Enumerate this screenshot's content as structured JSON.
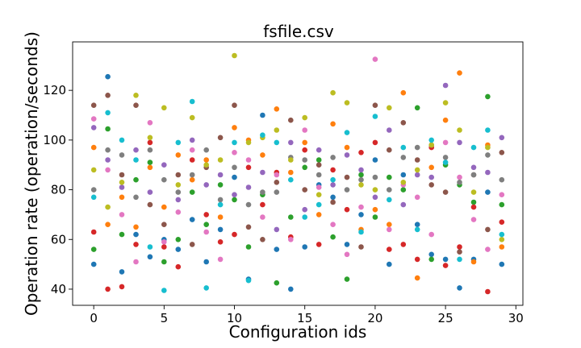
{
  "chart_data": {
    "type": "scatter",
    "title": "fsfile.csv",
    "xlabel": "Configuration ids",
    "ylabel": "Operation rate (operation/seconds)",
    "xlim": [
      -1.5,
      30.5
    ],
    "ylim": [
      33.5,
      139.5
    ],
    "xticks": [
      0,
      5,
      10,
      15,
      20,
      25,
      30
    ],
    "yticks": [
      40,
      60,
      80,
      100,
      120
    ],
    "grid": false,
    "legend": "none",
    "colors": [
      "#1f77b4",
      "#ff7f0e",
      "#2ca02c",
      "#d62728",
      "#9467bd",
      "#8c564b",
      "#e377c2",
      "#7f7f7f",
      "#bcbd22",
      "#17becf"
    ],
    "series": [
      {
        "color": "#1f77b4",
        "x": [
          0,
          1,
          2,
          3,
          4,
          5,
          6,
          7,
          8,
          9,
          10,
          11,
          12,
          13,
          14,
          15,
          16,
          17,
          18,
          19,
          20,
          21,
          22,
          23,
          24,
          25,
          26,
          27,
          28,
          29
        ],
        "y": [
          50,
          125.5,
          47,
          62,
          53,
          60,
          56,
          68,
          51,
          64,
          85,
          44,
          110,
          56,
          40,
          57,
          82,
          77,
          58,
          70,
          92,
          50,
          86,
          66,
          54,
          52,
          40.5,
          52,
          79,
          50
        ]
      },
      {
        "color": "#ff7f0e",
        "x": [
          0,
          1,
          2,
          3,
          4,
          5,
          6,
          7,
          8,
          9,
          10,
          11,
          12,
          13,
          14,
          15,
          16,
          17,
          18,
          19,
          20,
          21,
          22,
          23,
          24,
          25,
          26,
          27,
          28,
          29
        ],
        "y": [
          97,
          66,
          77,
          65,
          89,
          73,
          94,
          84,
          92,
          69,
          105,
          100,
          94,
          112.5,
          87,
          99,
          70,
          106.5,
          97,
          64,
          72,
          66,
          119,
          44.5,
          89,
          108,
          127,
          51,
          98,
          57
        ]
      },
      {
        "color": "#2ca02c",
        "x": [
          0,
          1,
          2,
          3,
          4,
          5,
          6,
          7,
          8,
          9,
          10,
          11,
          12,
          13,
          14,
          15,
          16,
          17,
          18,
          19,
          20,
          21,
          22,
          23,
          24,
          25,
          26,
          27,
          28,
          29
        ],
        "y": [
          56,
          104.5,
          62,
          84,
          91,
          51,
          60,
          79,
          66,
          82,
          76,
          57,
          78,
          42.5,
          69,
          89,
          92,
          61,
          44,
          86,
          69,
          85,
          80,
          113,
          52,
          90,
          82,
          75,
          117.5,
          74
        ]
      },
      {
        "color": "#d62728",
        "x": [
          0,
          1,
          2,
          3,
          4,
          5,
          6,
          7,
          8,
          9,
          10,
          11,
          12,
          13,
          14,
          15,
          16,
          17,
          18,
          19,
          20,
          21,
          22,
          23,
          24,
          25,
          26,
          27,
          28,
          29
        ],
        "y": [
          63,
          40,
          41,
          58,
          99,
          57,
          49,
          92,
          70,
          59,
          62,
          89,
          74,
          87,
          61,
          96,
          58,
          88,
          72,
          95,
          99,
          56,
          58,
          52,
          97,
          49.5,
          57,
          73,
          39,
          67
        ]
      },
      {
        "color": "#9467bd",
        "x": [
          0,
          1,
          2,
          3,
          4,
          5,
          6,
          7,
          8,
          9,
          10,
          11,
          12,
          13,
          14,
          15,
          16,
          17,
          18,
          19,
          20,
          21,
          22,
          23,
          24,
          25,
          26,
          27,
          28,
          29
        ],
        "y": [
          105,
          92,
          81,
          96,
          79,
          90,
          76,
          100,
          82,
          86,
          78,
          81,
          87,
          64,
          99,
          72,
          96,
          82,
          94,
          88,
          77,
          104,
          74,
          86,
          85,
          122,
          99,
          89,
          87,
          101
        ]
      },
      {
        "color": "#8c564b",
        "x": [
          0,
          1,
          2,
          3,
          4,
          5,
          6,
          7,
          8,
          9,
          10,
          11,
          12,
          13,
          14,
          15,
          16,
          17,
          18,
          19,
          20,
          21,
          22,
          23,
          24,
          25,
          26,
          27,
          28,
          29
        ],
        "y": [
          114,
          118,
          86,
          114,
          74,
          66,
          86,
          58,
          89,
          101,
          114,
          65,
          60,
          83,
          108,
          80,
          90,
          75,
          85,
          57,
          114,
          96,
          107,
          92,
          82,
          79,
          55,
          86,
          64,
          95
        ]
      },
      {
        "color": "#e377c2",
        "x": [
          0,
          1,
          2,
          3,
          4,
          5,
          6,
          7,
          8,
          9,
          10,
          11,
          12,
          13,
          14,
          15,
          16,
          17,
          18,
          19,
          20,
          21,
          22,
          23,
          24,
          25,
          26,
          27,
          28,
          29
        ],
        "y": [
          108.5,
          88,
          70,
          51,
          107,
          59,
          71,
          96,
          63,
          52,
          95,
          92,
          69,
          86,
          60,
          104,
          81,
          66,
          54,
          73,
          132.5,
          64,
          82,
          77,
          62,
          99,
          85,
          68,
          56,
          78
        ]
      },
      {
        "color": "#7f7f7f",
        "x": [
          0,
          1,
          2,
          3,
          4,
          5,
          6,
          7,
          8,
          9,
          10,
          11,
          12,
          13,
          14,
          15,
          16,
          17,
          18,
          19,
          20,
          21,
          22,
          23,
          24,
          25,
          26,
          27,
          28,
          29
        ],
        "y": [
          80,
          96,
          94,
          77,
          96,
          84,
          79,
          86,
          96,
          76,
          89,
          74,
          79,
          79,
          93,
          92,
          86,
          93,
          80,
          84,
          85,
          80,
          93,
          97,
          98,
          93,
          83,
          86,
          94,
          84
        ]
      },
      {
        "color": "#bcbd22",
        "x": [
          0,
          1,
          2,
          3,
          4,
          5,
          6,
          7,
          8,
          9,
          10,
          11,
          12,
          13,
          14,
          15,
          16,
          17,
          18,
          19,
          20,
          21,
          22,
          23,
          24,
          25,
          26,
          27,
          28,
          29
        ],
        "y": [
          88,
          73,
          83,
          118,
          101,
          113,
          82,
          109,
          90,
          92,
          134,
          99,
          101,
          104,
          92,
          109,
          78,
          119,
          115,
          82,
          80,
          113,
          83,
          88,
          98,
          115,
          104,
          79,
          97,
          60
        ]
      },
      {
        "color": "#17becf",
        "x": [
          0,
          1,
          2,
          3,
          4,
          5,
          6,
          7,
          8,
          9,
          10,
          11,
          12,
          13,
          14,
          15,
          16,
          17,
          18,
          19,
          20,
          21,
          22,
          23,
          24,
          25,
          26,
          27,
          28,
          29
        ],
        "y": [
          77,
          111,
          100,
          92,
          57,
          39.5,
          99,
          115.5,
          40.5,
          74,
          99,
          43.5,
          102,
          99,
          84,
          69,
          74,
          84,
          103,
          63,
          109.5,
          76,
          97,
          64,
          100,
          91,
          52,
          97,
          104,
          62
        ]
      }
    ]
  }
}
